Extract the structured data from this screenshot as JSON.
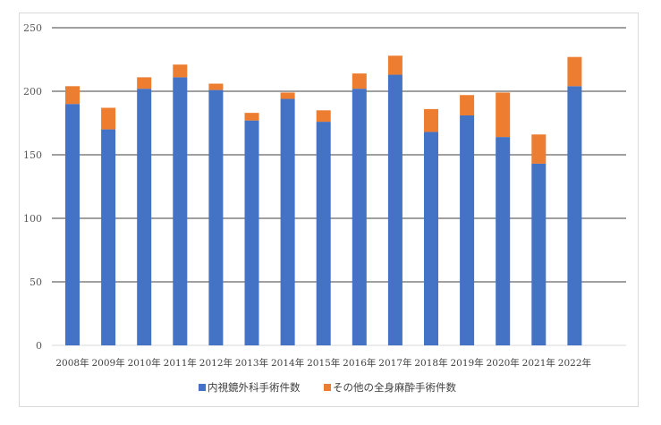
{
  "chart_data": {
    "type": "bar",
    "stacked": true,
    "title": "",
    "xlabel": "",
    "ylabel": "",
    "categories": [
      "2008年",
      "2009年",
      "2010年",
      "2011年",
      "2012年",
      "2013年",
      "2014年",
      "2015年",
      "2016年",
      "2017年",
      "2018年",
      "2019年",
      "2020年",
      "2021年",
      "2022年"
    ],
    "series": [
      {
        "name": "内視鏡外科手術件数",
        "color": "#4472c4",
        "values": [
          190,
          170,
          202,
          211,
          201,
          177,
          194,
          176,
          202,
          213,
          168,
          181,
          164,
          143,
          204
        ]
      },
      {
        "name": "その他の全身麻酔手術件数",
        "color": "#ed7d31",
        "values": [
          14,
          17,
          9,
          10,
          5,
          6,
          5,
          9,
          12,
          15,
          18,
          16,
          35,
          23,
          23
        ]
      }
    ],
    "ylim": [
      0,
      250
    ],
    "yticks": [
      0,
      50,
      100,
      150,
      200,
      250
    ],
    "grid": true,
    "legend_position": "bottom"
  }
}
